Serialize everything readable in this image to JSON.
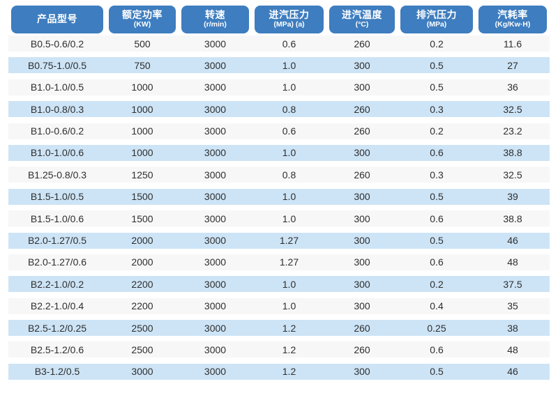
{
  "chart_data": {
    "type": "table",
    "title": "",
    "columns": [
      {
        "label": "产品型号",
        "sub": ""
      },
      {
        "label": "额定功率",
        "sub": "(KW)"
      },
      {
        "label": "转速",
        "sub": "(r/min)"
      },
      {
        "label": "进汽压力",
        "sub": "(MPa) (a)"
      },
      {
        "label": "进汽温度",
        "sub": "(°C)"
      },
      {
        "label": "排汽压力",
        "sub": "(MPa)"
      },
      {
        "label": "汽耗率",
        "sub": "(Kg/Kw·H)"
      }
    ],
    "rows": [
      [
        "B0.5-0.6/0.2",
        "500",
        "3000",
        "0.6",
        "260",
        "0.2",
        "11.6"
      ],
      [
        "B0.75-1.0/0.5",
        "750",
        "3000",
        "1.0",
        "300",
        "0.5",
        "27"
      ],
      [
        "B1.0-1.0/0.5",
        "1000",
        "3000",
        "1.0",
        "300",
        "0.5",
        "36"
      ],
      [
        "B1.0-0.8/0.3",
        "1000",
        "3000",
        "0.8",
        "260",
        "0.3",
        "32.5"
      ],
      [
        "B1.0-0.6/0.2",
        "1000",
        "3000",
        "0.6",
        "260",
        "0.2",
        "23.2"
      ],
      [
        "B1.0-1.0/0.6",
        "1000",
        "3000",
        "1.0",
        "300",
        "0.6",
        "38.8"
      ],
      [
        "B1.25-0.8/0.3",
        "1250",
        "3000",
        "0.8",
        "260",
        "0.3",
        "32.5"
      ],
      [
        "B1.5-1.0/0.5",
        "1500",
        "3000",
        "1.0",
        "300",
        "0.5",
        "39"
      ],
      [
        "B1.5-1.0/0.6",
        "1500",
        "3000",
        "1.0",
        "300",
        "0.6",
        "38.8"
      ],
      [
        "B2.0-1.27/0.5",
        "2000",
        "3000",
        "1.27",
        "300",
        "0.5",
        "46"
      ],
      [
        "B2.0-1.27/0.6",
        "2000",
        "3000",
        "1.27",
        "300",
        "0.6",
        "48"
      ],
      [
        "B2.2-1.0/0.2",
        "2200",
        "3000",
        "1.0",
        "300",
        "0.2",
        "37.5"
      ],
      [
        "B2.2-1.0/0.4",
        "2200",
        "3000",
        "1.0",
        "300",
        "0.4",
        "35"
      ],
      [
        "B2.5-1.2/0.25",
        "2500",
        "3000",
        "1.2",
        "260",
        "0.25",
        "38"
      ],
      [
        "B2.5-1.2/0.6",
        "2500",
        "3000",
        "1.2",
        "260",
        "0.6",
        "48"
      ],
      [
        "B3-1.2/0.5",
        "3000",
        "3000",
        "1.2",
        "300",
        "0.5",
        "46"
      ]
    ],
    "layout": {
      "legend": "none",
      "grid": "off",
      "row_striping": "alternating white / light-blue"
    }
  },
  "colors": {
    "header_bg": "#3e7dbf",
    "header_text": "#ffffff",
    "row_odd_bg": "#f7f7f8",
    "row_even_bg": "#cde4f6",
    "body_text": "#2e2e2e",
    "page_bg": "#ffffff"
  }
}
